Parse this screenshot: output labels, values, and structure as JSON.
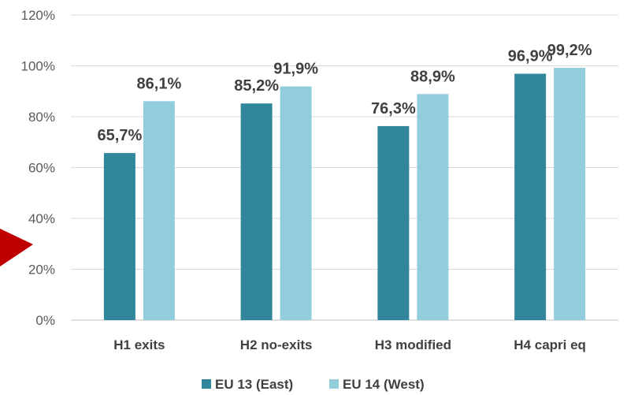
{
  "chart_data": {
    "type": "bar",
    "categories": [
      "H1 exits",
      "H2 no-exits",
      "H3 modified",
      "H4 capri eq"
    ],
    "series": [
      {
        "name": "EU 13 (East)",
        "color": "#31869b",
        "values": [
          65.7,
          85.2,
          76.3,
          96.9
        ],
        "labels": [
          "65,7%",
          "85,2%",
          "76,3%",
          "96,9%"
        ]
      },
      {
        "name": "EU 14 (West)",
        "color": "#92cddc",
        "values": [
          86.1,
          91.9,
          88.9,
          99.2
        ],
        "labels": [
          "86,1%",
          "91,9%",
          "88,9%",
          "99,2%"
        ]
      }
    ],
    "yticks": [
      "0%",
      "20%",
      "40%",
      "60%",
      "80%",
      "100%",
      "120%"
    ],
    "ylim": [
      0,
      120
    ],
    "grid": true,
    "legend_position": "bottom",
    "decoration_color": "#c00000"
  }
}
